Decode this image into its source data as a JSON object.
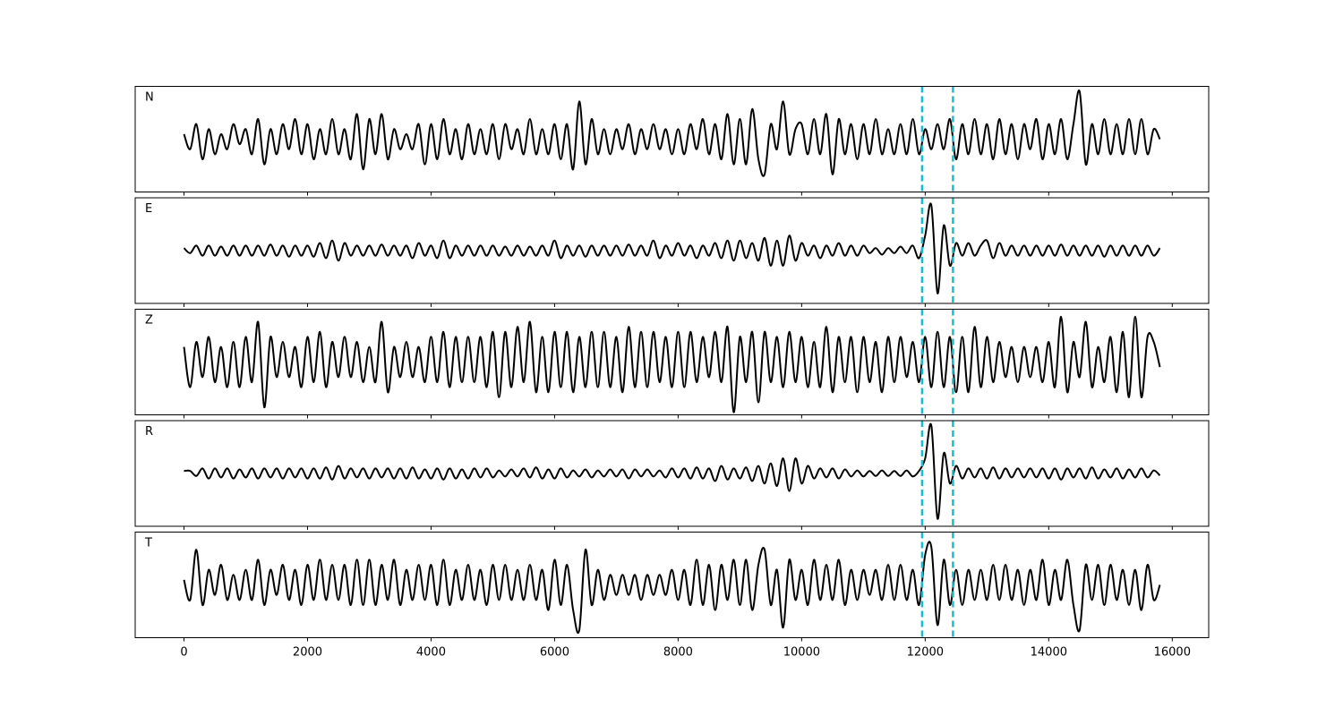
{
  "chart_data": {
    "type": "line",
    "x": [
      0,
      100,
      200,
      300,
      400,
      500,
      600,
      700,
      800,
      900,
      1000,
      1100,
      1200,
      1300,
      1400,
      1500,
      1600,
      1700,
      1800,
      1900,
      2000,
      2100,
      2200,
      2300,
      2400,
      2500,
      2600,
      2700,
      2800,
      2900,
      3000,
      3100,
      3200,
      3300,
      3400,
      3500,
      3600,
      3700,
      3800,
      3900,
      4000,
      4100,
      4200,
      4300,
      4400,
      4500,
      4600,
      4700,
      4800,
      4900,
      5000,
      5100,
      5200,
      5300,
      5400,
      5500,
      5600,
      5700,
      5800,
      5900,
      6000,
      6100,
      6200,
      6300,
      6400,
      6500,
      6600,
      6700,
      6800,
      6900,
      7000,
      7100,
      7200,
      7300,
      7400,
      7500,
      7600,
      7700,
      7800,
      7900,
      8000,
      8100,
      8200,
      8300,
      8400,
      8500,
      8600,
      8700,
      8800,
      8900,
      9000,
      9100,
      9200,
      9300,
      9400,
      9500,
      9600,
      9700,
      9800,
      9900,
      10000,
      10100,
      10200,
      10300,
      10400,
      10500,
      10600,
      10700,
      10800,
      10900,
      11000,
      11100,
      11200,
      11300,
      11400,
      11500,
      11600,
      11700,
      11800,
      11900,
      12000,
      12100,
      12200,
      12300,
      12400,
      12500,
      12600,
      12700,
      12800,
      12900,
      13000,
      13100,
      13200,
      13300,
      13400,
      13500,
      13600,
      13700,
      13800,
      13900,
      14000,
      14100,
      14200,
      14300,
      14400,
      14500,
      14600,
      14700,
      14800,
      14900,
      15000,
      15100,
      15200,
      15300,
      15400,
      15500,
      15600,
      15700,
      15800
    ],
    "xlim": [
      -790,
      16590
    ],
    "xticks": [
      0,
      2000,
      4000,
      6000,
      8000,
      10000,
      12000,
      14000,
      16000
    ],
    "vlines": [
      11950,
      12450
    ],
    "vline_color": "#17becf",
    "series": [
      {
        "name": "N",
        "color": "#000000",
        "ylim": [
          -1.05,
          1.05
        ],
        "values": [
          0.1,
          -0.2,
          0.3,
          -0.4,
          0.2,
          -0.3,
          0.1,
          -0.2,
          0.3,
          -0.1,
          0.2,
          -0.3,
          0.4,
          -0.5,
          0.2,
          -0.3,
          0.3,
          -0.2,
          0.4,
          -0.3,
          0.3,
          -0.4,
          0.2,
          -0.3,
          0.4,
          -0.3,
          0.2,
          -0.4,
          0.5,
          -0.6,
          0.4,
          -0.3,
          0.5,
          -0.4,
          0.2,
          -0.2,
          0.1,
          -0.2,
          0.3,
          -0.5,
          0.3,
          -0.4,
          0.4,
          -0.3,
          0.2,
          -0.4,
          0.3,
          -0.3,
          0.2,
          -0.3,
          0.3,
          -0.4,
          0.3,
          -0.2,
          0.2,
          -0.3,
          0.4,
          -0.3,
          0.2,
          -0.3,
          0.3,
          -0.4,
          0.3,
          -0.6,
          0.75,
          -0.5,
          0.4,
          -0.3,
          0.2,
          -0.3,
          0.2,
          -0.2,
          0.3,
          -0.3,
          0.2,
          -0.2,
          0.3,
          -0.2,
          0.2,
          -0.3,
          0.2,
          -0.3,
          0.3,
          -0.2,
          0.4,
          -0.3,
          0.3,
          -0.4,
          0.5,
          -0.5,
          0.4,
          -0.5,
          0.6,
          -0.4,
          -0.7,
          0.3,
          -0.2,
          0.75,
          -0.3,
          0.2,
          0.3,
          -0.3,
          0.4,
          -0.3,
          0.5,
          -0.7,
          0.4,
          -0.3,
          0.3,
          -0.4,
          0.3,
          -0.3,
          0.4,
          -0.3,
          0.2,
          -0.3,
          0.3,
          -0.3,
          0.4,
          -0.3,
          0.2,
          -0.2,
          0.3,
          -0.2,
          0.4,
          -0.4,
          0.3,
          -0.3,
          0.4,
          -0.3,
          0.3,
          -0.4,
          0.4,
          -0.3,
          0.3,
          -0.4,
          0.3,
          -0.2,
          0.4,
          -0.4,
          0.3,
          -0.3,
          0.4,
          -0.4,
          0.3,
          0.95,
          -0.5,
          0.3,
          -0.3,
          0.4,
          -0.3,
          0.3,
          -0.3,
          0.4,
          -0.3,
          0.4,
          -0.3,
          0.2,
          0.0
        ]
      },
      {
        "name": "E",
        "color": "#000000",
        "ylim": [
          -1.05,
          1.05
        ],
        "values": [
          0.05,
          -0.05,
          0.1,
          -0.1,
          0.1,
          -0.1,
          0.08,
          -0.1,
          0.1,
          -0.1,
          0.1,
          -0.1,
          0.1,
          -0.1,
          0.12,
          -0.1,
          0.1,
          -0.12,
          0.1,
          -0.1,
          0.1,
          -0.12,
          0.15,
          -0.15,
          0.2,
          -0.2,
          0.15,
          -0.1,
          0.1,
          -0.1,
          0.1,
          -0.1,
          0.12,
          -0.1,
          0.1,
          -0.1,
          0.1,
          -0.15,
          0.15,
          -0.1,
          0.1,
          -0.15,
          0.2,
          -0.15,
          0.1,
          -0.1,
          0.1,
          -0.1,
          0.1,
          -0.1,
          0.1,
          -0.1,
          0.08,
          -0.1,
          0.1,
          -0.1,
          0.08,
          -0.1,
          0.1,
          -0.1,
          0.2,
          -0.15,
          0.1,
          -0.1,
          0.1,
          -0.12,
          0.1,
          -0.1,
          0.1,
          -0.1,
          0.1,
          -0.1,
          0.12,
          -0.1,
          0.1,
          -0.1,
          0.2,
          -0.15,
          0.1,
          -0.1,
          0.15,
          -0.1,
          0.1,
          -0.15,
          0.1,
          -0.1,
          0.15,
          -0.15,
          0.2,
          -0.2,
          0.2,
          -0.15,
          0.15,
          -0.2,
          0.25,
          -0.3,
          0.2,
          -0.3,
          0.3,
          -0.2,
          0.15,
          -0.1,
          0.1,
          -0.15,
          0.1,
          -0.1,
          0.15,
          -0.1,
          0.1,
          -0.1,
          0.1,
          -0.05,
          0.05,
          -0.08,
          0.05,
          -0.05,
          0.08,
          -0.05,
          0.1,
          -0.15,
          0.3,
          0.9,
          -0.85,
          0.5,
          -0.3,
          0.15,
          -0.1,
          0.15,
          -0.1,
          0.1,
          0.2,
          -0.15,
          0.15,
          -0.1,
          0.1,
          -0.1,
          0.1,
          -0.1,
          0.1,
          -0.1,
          0.1,
          -0.1,
          0.12,
          -0.1,
          0.1,
          -0.1,
          0.1,
          -0.1,
          0.1,
          -0.12,
          0.1,
          -0.1,
          0.1,
          -0.1,
          0.1,
          -0.1,
          0.1,
          -0.1,
          0.05
        ]
      },
      {
        "name": "Z",
        "color": "#000000",
        "ylim": [
          -1.05,
          1.05
        ],
        "values": [
          0.3,
          -0.5,
          0.4,
          -0.3,
          0.5,
          -0.4,
          0.3,
          -0.5,
          0.4,
          -0.5,
          0.5,
          -0.4,
          0.8,
          -0.9,
          0.5,
          -0.3,
          0.4,
          -0.3,
          0.3,
          -0.5,
          0.5,
          -0.4,
          0.6,
          -0.5,
          0.4,
          -0.3,
          0.5,
          -0.3,
          0.4,
          -0.4,
          0.3,
          -0.4,
          0.8,
          -0.6,
          0.3,
          -0.3,
          0.4,
          -0.3,
          0.3,
          -0.4,
          0.5,
          -0.4,
          0.6,
          -0.5,
          0.5,
          -0.4,
          0.5,
          -0.4,
          0.5,
          -0.5,
          0.6,
          -0.7,
          0.6,
          -0.5,
          0.7,
          -0.4,
          0.8,
          -0.6,
          0.5,
          -0.6,
          0.6,
          -0.5,
          0.6,
          -0.6,
          0.5,
          -0.5,
          0.6,
          -0.5,
          0.6,
          -0.5,
          0.5,
          -0.6,
          0.7,
          -0.5,
          0.6,
          -0.5,
          0.6,
          -0.4,
          0.5,
          -0.5,
          0.6,
          -0.5,
          0.6,
          -0.4,
          0.5,
          -0.3,
          0.6,
          -0.4,
          0.7,
          -1.0,
          0.5,
          -0.4,
          0.6,
          -0.8,
          0.6,
          -0.4,
          0.5,
          -0.5,
          0.6,
          -0.4,
          0.5,
          -0.5,
          0.4,
          -0.5,
          0.7,
          -0.6,
          0.5,
          -0.4,
          0.5,
          -0.6,
          0.5,
          -0.4,
          0.4,
          -0.6,
          0.5,
          -0.4,
          0.5,
          -0.3,
          0.4,
          -0.4,
          0.5,
          -0.5,
          0.6,
          -0.5,
          0.5,
          -0.6,
          0.5,
          -0.6,
          0.7,
          -0.5,
          0.5,
          -0.4,
          0.4,
          -0.3,
          0.3,
          -0.4,
          0.3,
          -0.3,
          0.3,
          -0.4,
          0.4,
          -0.5,
          0.9,
          -0.6,
          0.4,
          -0.3,
          0.8,
          -0.5,
          0.3,
          -0.4,
          0.5,
          -0.6,
          0.6,
          -0.7,
          0.9,
          -0.7,
          0.5,
          0.4,
          -0.1
        ]
      },
      {
        "name": "R",
        "color": "#000000",
        "ylim": [
          -1.05,
          1.05
        ],
        "values": [
          0.05,
          0.05,
          -0.05,
          0.1,
          -0.1,
          0.1,
          -0.08,
          0.1,
          -0.1,
          0.08,
          -0.08,
          0.1,
          -0.1,
          0.1,
          -0.08,
          0.1,
          -0.1,
          0.1,
          -0.08,
          0.1,
          -0.1,
          0.1,
          -0.1,
          0.12,
          -0.12,
          0.15,
          -0.1,
          0.1,
          -0.08,
          0.1,
          -0.1,
          0.1,
          -0.08,
          0.1,
          -0.1,
          0.1,
          -0.1,
          0.12,
          -0.1,
          0.08,
          -0.1,
          0.1,
          -0.12,
          0.1,
          -0.1,
          0.08,
          -0.1,
          0.1,
          -0.08,
          0.1,
          -0.08,
          0.06,
          -0.06,
          0.08,
          -0.06,
          0.1,
          -0.08,
          0.12,
          -0.1,
          0.08,
          -0.1,
          0.1,
          -0.08,
          0.06,
          -0.06,
          0.08,
          -0.08,
          0.06,
          -0.06,
          0.08,
          -0.06,
          0.08,
          -0.1,
          0.08,
          -0.06,
          0.08,
          -0.06,
          0.06,
          -0.08,
          0.1,
          -0.08,
          0.1,
          -0.1,
          0.12,
          -0.1,
          0.1,
          -0.15,
          0.15,
          -0.12,
          0.1,
          -0.1,
          0.12,
          -0.15,
          0.15,
          -0.2,
          0.2,
          -0.25,
          0.3,
          -0.35,
          0.3,
          -0.2,
          0.15,
          -0.1,
          0.1,
          -0.08,
          0.1,
          -0.1,
          0.08,
          -0.06,
          0.06,
          -0.06,
          0.05,
          -0.05,
          0.06,
          -0.05,
          0.05,
          -0.05,
          0.06,
          -0.06,
          0.05,
          0.3,
          0.95,
          -0.9,
          0.4,
          -0.2,
          0.15,
          -0.1,
          0.1,
          -0.08,
          0.1,
          -0.1,
          0.12,
          -0.1,
          0.1,
          -0.08,
          0.1,
          -0.08,
          0.1,
          -0.08,
          0.1,
          -0.1,
          0.1,
          -0.12,
          0.1,
          -0.08,
          0.1,
          -0.1,
          0.12,
          -0.1,
          0.08,
          -0.08,
          0.1,
          -0.1,
          0.08,
          -0.08,
          0.1,
          -0.08,
          0.06,
          -0.04
        ]
      },
      {
        "name": "T",
        "color": "#000000",
        "ylim": [
          -1.05,
          1.05
        ],
        "values": [
          0.1,
          -0.3,
          0.7,
          -0.4,
          0.3,
          -0.2,
          0.4,
          -0.3,
          0.2,
          -0.3,
          0.3,
          -0.3,
          0.5,
          -0.4,
          0.3,
          -0.2,
          0.4,
          -0.3,
          0.3,
          -0.4,
          0.4,
          -0.3,
          0.5,
          -0.3,
          0.4,
          -0.3,
          0.4,
          -0.4,
          0.5,
          -0.4,
          0.5,
          -0.4,
          0.4,
          -0.3,
          0.5,
          -0.4,
          0.3,
          -0.3,
          0.4,
          -0.3,
          0.4,
          -0.4,
          0.5,
          -0.4,
          0.3,
          -0.3,
          0.4,
          -0.3,
          0.3,
          -0.4,
          0.4,
          -0.3,
          0.4,
          -0.3,
          0.3,
          -0.3,
          0.4,
          -0.3,
          0.3,
          -0.5,
          0.5,
          -0.4,
          0.4,
          -0.5,
          -0.9,
          0.7,
          -0.4,
          0.3,
          -0.3,
          0.2,
          -0.2,
          0.2,
          -0.2,
          0.2,
          -0.3,
          0.2,
          -0.2,
          0.2,
          -0.2,
          0.3,
          -0.3,
          0.3,
          -0.4,
          0.5,
          -0.4,
          0.4,
          -0.5,
          0.4,
          -0.3,
          0.5,
          -0.4,
          0.5,
          -0.5,
          0.4,
          0.7,
          -0.4,
          0.3,
          -0.85,
          0.5,
          -0.3,
          0.3,
          -0.4,
          0.5,
          -0.3,
          0.4,
          -0.3,
          0.5,
          -0.4,
          0.3,
          -0.3,
          0.3,
          -0.2,
          0.3,
          -0.3,
          0.4,
          -0.3,
          0.4,
          -0.3,
          0.3,
          -0.4,
          0.6,
          0.75,
          -0.8,
          0.5,
          -0.4,
          0.3,
          -0.4,
          0.3,
          -0.3,
          0.3,
          -0.3,
          0.4,
          -0.3,
          0.4,
          -0.3,
          0.3,
          -0.4,
          0.3,
          -0.3,
          0.5,
          -0.4,
          0.3,
          -0.3,
          0.5,
          -0.4,
          -0.9,
          0.4,
          -0.3,
          0.4,
          -0.4,
          0.4,
          -0.3,
          0.3,
          -0.4,
          0.3,
          -0.5,
          0.4,
          -0.3,
          0.0
        ]
      }
    ]
  }
}
